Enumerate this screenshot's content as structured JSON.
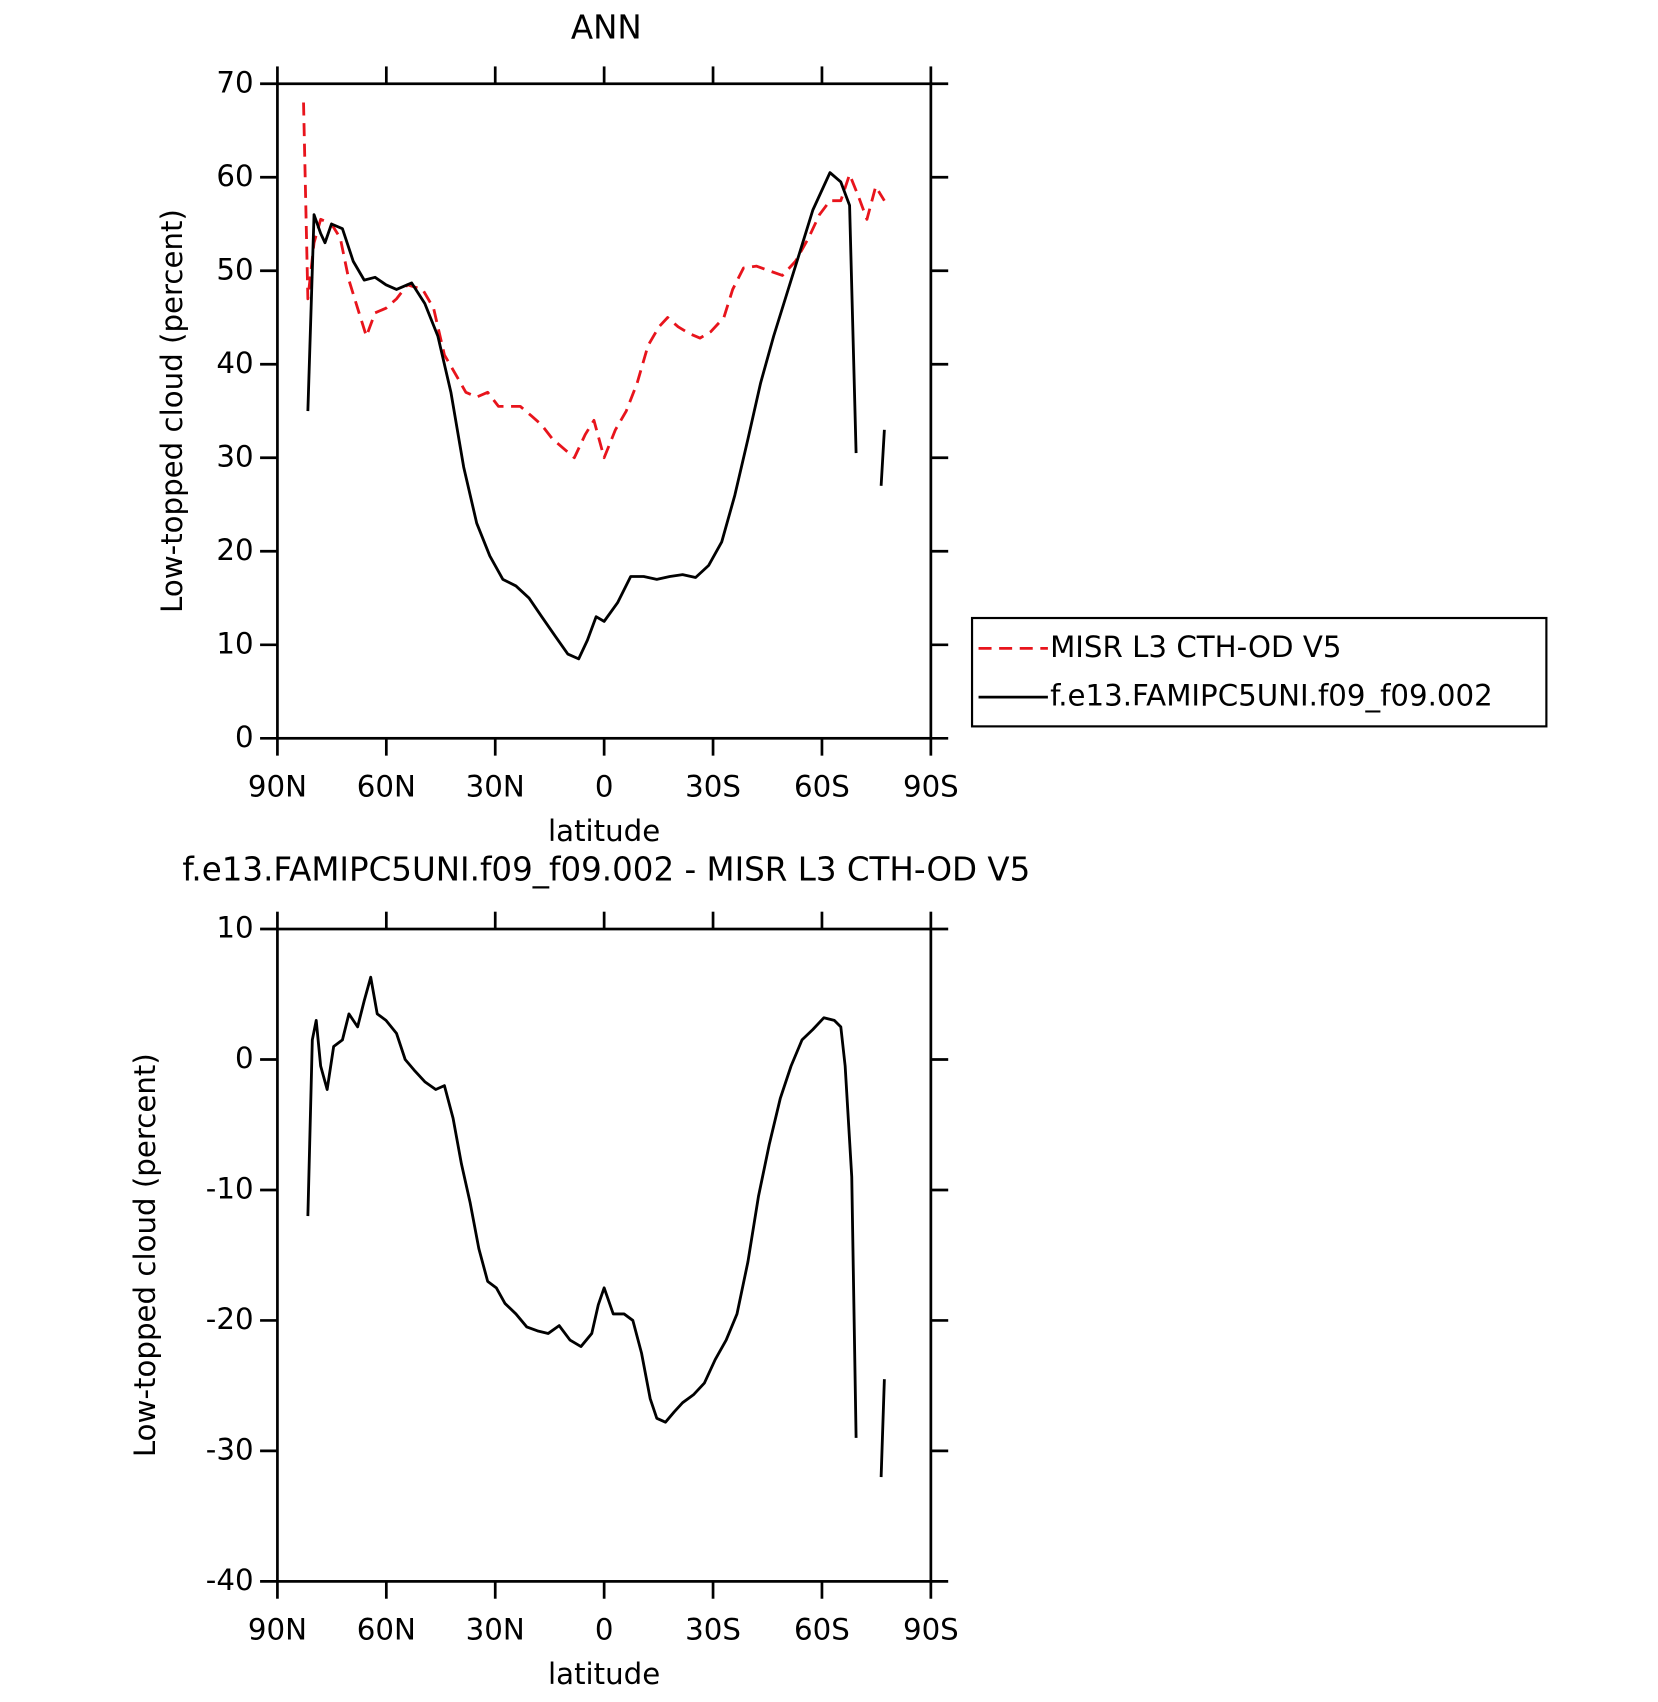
{
  "chart_data": [
    {
      "type": "line",
      "title": "ANN",
      "xlabel": "latitude",
      "ylabel": "Low-topped cloud (percent)",
      "xlim": [
        90,
        -90
      ],
      "xticks": [
        {
          "value": 90,
          "label": "90N"
        },
        {
          "value": 60,
          "label": "60N"
        },
        {
          "value": 30,
          "label": "30N"
        },
        0,
        {
          "value": -30,
          "label": "30S"
        },
        {
          "value": -60,
          "label": "60S"
        },
        {
          "value": -90,
          "label": "90S"
        }
      ],
      "ylim": [
        0,
        70
      ],
      "yticks": [
        0,
        10,
        20,
        30,
        40,
        50,
        60,
        70
      ],
      "legend": "right",
      "series": [
        {
          "name": "MISR L3 CTH-OD V5",
          "color": "#e8141c",
          "dash": true,
          "x": [
            82.8,
            81.6,
            79.9,
            78.1,
            75.1,
            72.7,
            70.3,
            67.9,
            65.5,
            63.1,
            60.1,
            57.2,
            54.2,
            50,
            47,
            44,
            41,
            38.1,
            35.1,
            32.1,
            29.1,
            26.1,
            23.1,
            20.1,
            17.2,
            14.2,
            11.2,
            8.2,
            5.2,
            2.8,
            0,
            -3.1,
            -6.1,
            -9.1,
            -12.1,
            -15.1,
            -17.5,
            -20.4,
            -23.4,
            -26.4,
            -29.4,
            -33,
            -35.4,
            -38.4,
            -42,
            -45.5,
            -49.1,
            -52.7,
            -56.3,
            -59.3,
            -62.2,
            -65.2,
            -67.6,
            -70,
            -72.4,
            -74.8,
            -77.2
          ],
          "values": [
            68,
            47,
            53,
            55.5,
            55,
            53.5,
            49,
            46,
            43,
            45.5,
            46,
            47,
            48.5,
            48,
            46,
            41,
            39,
            37,
            36.5,
            37,
            35.5,
            35.5,
            35.5,
            34.5,
            33.5,
            32,
            31,
            30,
            32.5,
            34,
            30,
            33,
            35,
            38,
            42,
            44,
            45,
            44,
            43.3,
            42.8,
            43.5,
            45,
            48,
            50.3,
            50.5,
            50,
            49.5,
            51,
            53.5,
            56,
            57.5,
            57.5,
            60.3,
            58,
            55.5,
            59,
            57.5
          ]
        },
        {
          "name": "f.e13.FAMIPC5UNI.f09_f09.002",
          "color": "#000000",
          "dash": false,
          "x": [
            81.6,
            79.9,
            78.1,
            76.9,
            75.1,
            72.1,
            69.1,
            66.1,
            63.1,
            60.1,
            57.2,
            53,
            49.4,
            45.8,
            42.2,
            38.7,
            35.1,
            31.5,
            27.9,
            24.3,
            20.7,
            17.2,
            13.6,
            10,
            7,
            4.6,
            2.2,
            0,
            -3.7,
            -7.3,
            -10.9,
            -14.5,
            -18.1,
            -21.6,
            -25.2,
            -28.8,
            -32.4,
            -36,
            -39.6,
            -43.1,
            -46.7,
            -50.3,
            -53.9,
            -57.5,
            -62.2,
            -65.2,
            -67.6,
            -69.4,
            null,
            -76.3,
            -77.2
          ],
          "values": [
            35,
            56,
            54,
            53,
            55,
            54.5,
            51,
            49,
            49.3,
            48.5,
            48,
            48.7,
            46.5,
            43,
            37,
            29,
            23,
            19.5,
            17,
            16.3,
            15,
            13,
            11,
            9,
            8.5,
            10.5,
            13,
            12.5,
            14.5,
            17.3,
            17.3,
            17,
            17.3,
            17.5,
            17.2,
            18.5,
            21,
            26,
            32,
            38,
            43,
            47.5,
            52,
            56.5,
            60.5,
            59.5,
            57,
            30.5,
            null,
            27,
            33
          ]
        }
      ]
    },
    {
      "type": "line",
      "title": "f.e13.FAMIPC5UNI.f09_f09.002 - MISR L3 CTH-OD V5",
      "xlabel": "latitude",
      "ylabel": "Low-topped cloud (percent)",
      "xlim": [
        90,
        -90
      ],
      "xticks": [
        {
          "value": 90,
          "label": "90N"
        },
        {
          "value": 60,
          "label": "60N"
        },
        {
          "value": 30,
          "label": "30N"
        },
        0,
        {
          "value": -30,
          "label": "30S"
        },
        {
          "value": -60,
          "label": "60S"
        },
        {
          "value": -90,
          "label": "90S"
        }
      ],
      "ylim": [
        -40,
        10
      ],
      "yticks": [
        -40,
        -30,
        -20,
        -10,
        0,
        10
      ],
      "color": "#000000",
      "x": [
        81.6,
        80.4,
        79.3,
        78.1,
        76.3,
        74.5,
        72.1,
        70.3,
        67.9,
        66.1,
        64.3,
        62.5,
        60.1,
        57.2,
        54.8,
        52.4,
        49.4,
        46.4,
        44,
        41.6,
        39.3,
        36.9,
        34.5,
        32.1,
        29.7,
        27.3,
        24.3,
        21.3,
        18.4,
        15.4,
        12.4,
        9.4,
        6.4,
        3.4,
        1.6,
        0,
        -2.5,
        -5.5,
        -7.9,
        -10.3,
        -12.7,
        -14.5,
        -16.9,
        -19.3,
        -21.6,
        -24.6,
        -27.6,
        -30.6,
        -33.6,
        -36.6,
        -39.6,
        -42.5,
        -45.5,
        -48.5,
        -51.5,
        -54.5,
        -57.5,
        -60.5,
        -63.4,
        -65.2,
        -66.4,
        -68.2,
        -69.4,
        null,
        -76.3,
        -77.2
      ],
      "values": [
        -12,
        1.5,
        3,
        -0.5,
        -2.3,
        1,
        1.5,
        3.5,
        2.5,
        4.5,
        6.3,
        3.5,
        3,
        2,
        0,
        -0.8,
        -1.7,
        -2.3,
        -2,
        -4.5,
        -8,
        -11,
        -14.5,
        -17,
        -17.5,
        -18.7,
        -19.5,
        -20.5,
        -20.8,
        -21,
        -20.4,
        -21.5,
        -22,
        -21,
        -18.8,
        -17.5,
        -19.5,
        -19.5,
        -20,
        -22.5,
        -26,
        -27.5,
        -27.8,
        -27,
        -26.3,
        -25.7,
        -24.8,
        -23,
        -21.5,
        -19.5,
        -15.5,
        -10.5,
        -6.5,
        -3,
        -0.5,
        1.5,
        2.3,
        3.2,
        3,
        2.5,
        -0.5,
        -9,
        -29,
        null,
        -32,
        -24.5
      ]
    }
  ]
}
